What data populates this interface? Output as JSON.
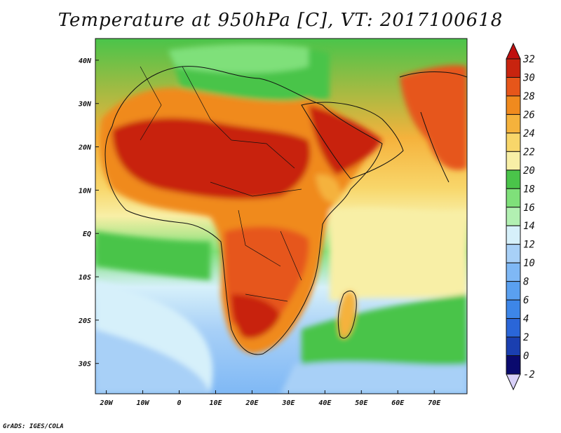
{
  "title": "Temperature at 950hPa [C], VT: 2017100618",
  "credit": "GrADS: IGES/COLA",
  "chart_data": {
    "type": "heatmap",
    "variable": "Temperature",
    "level": "950hPa",
    "units": "C",
    "valid_time": "2017100618",
    "lon_range": [
      -23,
      79
    ],
    "lat_range": [
      -37,
      45
    ],
    "lon_ticks": [
      "20W",
      "10W",
      "0",
      "10E",
      "20E",
      "30E",
      "40E",
      "50E",
      "60E",
      "70E"
    ],
    "lon_tick_values": [
      -20,
      -10,
      0,
      10,
      20,
      30,
      40,
      50,
      60,
      70
    ],
    "lat_ticks": [
      "40N",
      "30N",
      "20N",
      "10N",
      "EQ",
      "10S",
      "20S",
      "30S"
    ],
    "lat_tick_values": [
      40,
      30,
      20,
      10,
      0,
      -10,
      -20,
      -30
    ],
    "colorbar": {
      "labels": [
        "-2",
        "0",
        "2",
        "4",
        "6",
        "8",
        "10",
        "12",
        "14",
        "16",
        "18",
        "20",
        "22",
        "24",
        "26",
        "28",
        "30",
        "32"
      ],
      "levels": [
        -2,
        0,
        2,
        4,
        6,
        8,
        10,
        12,
        14,
        16,
        18,
        20,
        22,
        24,
        26,
        28,
        30,
        32
      ],
      "colors": [
        "#d8d0f8",
        "#0a0a6e",
        "#1a3fb0",
        "#2a66d8",
        "#3d86e8",
        "#5aa0f0",
        "#7fb8f5",
        "#a8d0f7",
        "#d6f0fa",
        "#b2f0b2",
        "#7fe07a",
        "#4ac44a",
        "#f8efa6",
        "#f8d66a",
        "#f5b23c",
        "#f08a1e",
        "#e6561a",
        "#c8240f",
        "#c01010"
      ]
    }
  }
}
